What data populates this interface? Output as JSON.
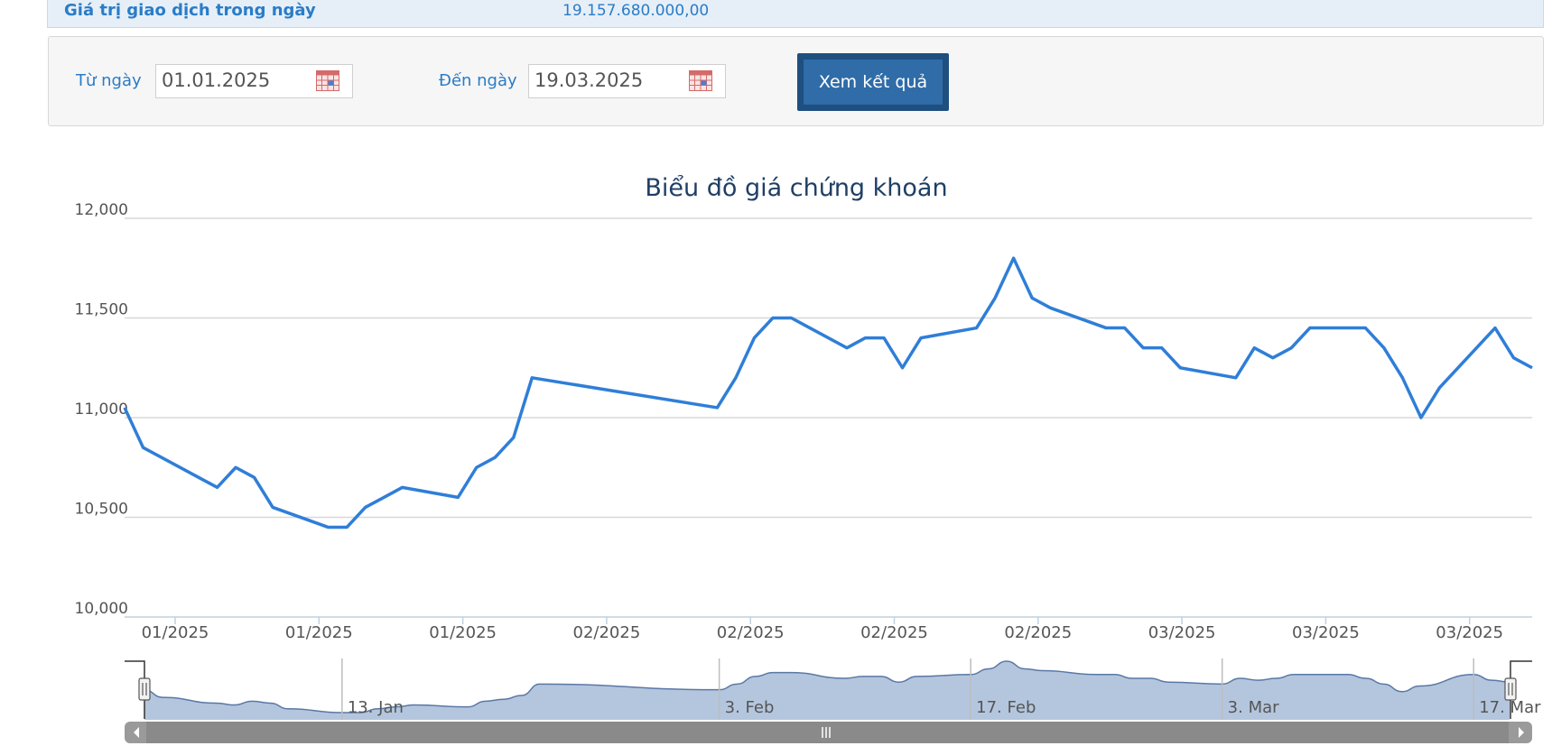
{
  "info": {
    "label": "Giá trị giao dịch trong ngày",
    "value": "19.157.680.000,00"
  },
  "filter": {
    "from_label": "Từ ngày",
    "from_value": "01.01.2025",
    "to_label": "Đến ngày",
    "to_value": "19.03.2025",
    "submit_label": "Xem kết quả"
  },
  "colors": {
    "line": "#2f7ed8",
    "navigator_fill": "#b4c6de",
    "navigator_line": "#5a78a6",
    "scrollbar": "#8a8a8a"
  },
  "chart_data": {
    "type": "line",
    "title": "Biểu đồ giá chứng khoán",
    "ylim": [
      10000,
      12000
    ],
    "y_ticks": [
      "10,000",
      "10,500",
      "11,000",
      "11,500",
      "12,000"
    ],
    "x_tick_labels": [
      "01/2025",
      "01/2025",
      "01/2025",
      "02/2025",
      "02/2025",
      "02/2025",
      "02/2025",
      "03/2025",
      "03/2025",
      "03/2025"
    ],
    "grid": true,
    "series": [
      {
        "x": [
          "2025-01-02",
          "2025-01-03",
          "2025-01-06",
          "2025-01-07",
          "2025-01-08",
          "2025-01-09",
          "2025-01-10",
          "2025-01-13",
          "2025-01-14",
          "2025-01-15",
          "2025-01-16",
          "2025-01-17",
          "2025-01-20",
          "2025-01-21",
          "2025-01-22",
          "2025-01-23",
          "2025-01-24",
          "2025-02-03",
          "2025-02-04",
          "2025-02-05",
          "2025-02-06",
          "2025-02-07",
          "2025-02-10",
          "2025-02-11",
          "2025-02-12",
          "2025-02-13",
          "2025-02-14",
          "2025-02-17",
          "2025-02-18",
          "2025-02-19",
          "2025-02-20",
          "2025-02-21",
          "2025-02-24",
          "2025-02-25",
          "2025-02-26",
          "2025-02-27",
          "2025-02-28",
          "2025-03-03",
          "2025-03-04",
          "2025-03-05",
          "2025-03-06",
          "2025-03-07",
          "2025-03-10",
          "2025-03-11",
          "2025-03-12",
          "2025-03-13",
          "2025-03-14",
          "2025-03-17",
          "2025-03-18",
          "2025-03-19"
        ],
        "values": [
          11050,
          10850,
          10700,
          10650,
          10750,
          10700,
          10550,
          10450,
          10450,
          10550,
          10600,
          10650,
          10600,
          10750,
          10800,
          10900,
          11200,
          11050,
          11200,
          11400,
          11500,
          11500,
          11350,
          11400,
          11400,
          11250,
          11400,
          11450,
          11600,
          11800,
          11600,
          11550,
          11450,
          11450,
          11350,
          11350,
          11250,
          11200,
          11350,
          11300,
          11350,
          11450,
          11450,
          11350,
          11200,
          11000,
          11150,
          11450,
          11300,
          11250
        ]
      }
    ],
    "navigator": {
      "labels": [
        "13. Jan",
        "3. Feb",
        "17. Feb",
        "3. Mar",
        "17. Mar"
      ]
    }
  }
}
